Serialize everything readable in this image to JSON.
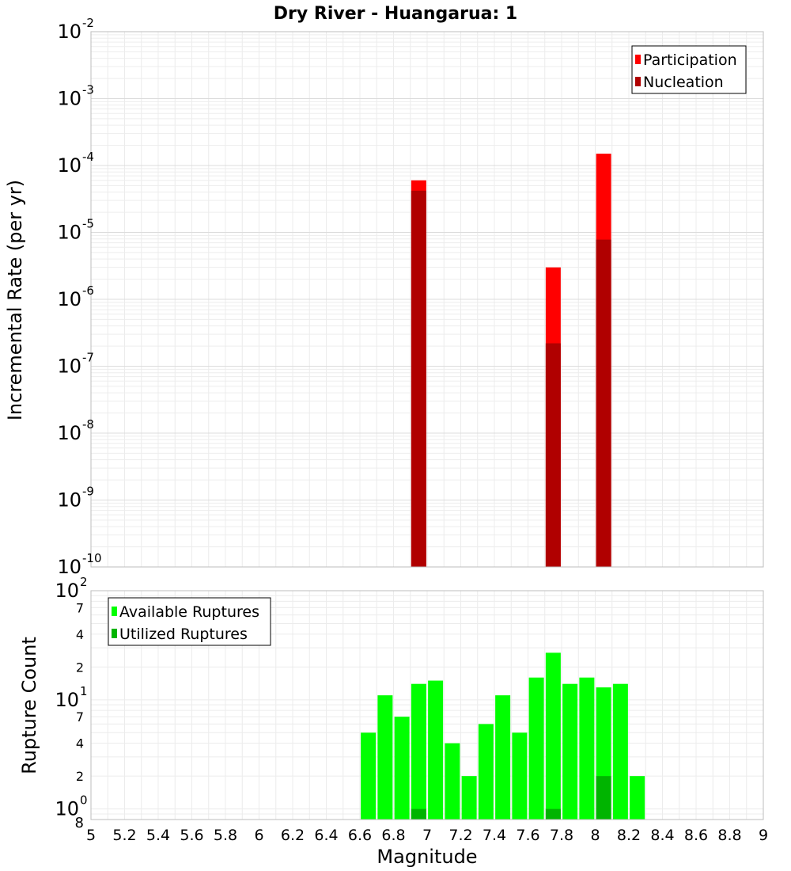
{
  "chart_data": [
    {
      "type": "bar",
      "title": "Dry River - Huangarua: 1",
      "xlabel": "",
      "ylabel": "Incremental Rate (per yr)",
      "yscale": "log",
      "xlim": [
        5,
        9
      ],
      "ylim": [
        1e-10,
        0.01
      ],
      "bin_width": 0.1,
      "y_tick_labels": [
        {
          "value": 1e-10,
          "base": "10",
          "exp": "-10"
        },
        {
          "value": 1e-09,
          "base": "10",
          "exp": "-9"
        },
        {
          "value": 1e-08,
          "base": "10",
          "exp": "-8"
        },
        {
          "value": 1e-07,
          "base": "10",
          "exp": "-7"
        },
        {
          "value": 1e-06,
          "base": "10",
          "exp": "-6"
        },
        {
          "value": 1e-05,
          "base": "10",
          "exp": "-5"
        },
        {
          "value": 0.0001,
          "base": "10",
          "exp": "-4"
        },
        {
          "value": 0.001,
          "base": "10",
          "exp": "-3"
        },
        {
          "value": 0.01,
          "base": "10",
          "exp": "-2"
        }
      ],
      "series": [
        {
          "name": "Participation",
          "color": "#ff0000",
          "x": [
            6.95,
            7.75,
            8.05
          ],
          "values": [
            6e-05,
            3e-06,
            0.00015
          ]
        },
        {
          "name": "Nucleation",
          "color": "#b00000",
          "x": [
            6.95,
            7.75,
            8.05
          ],
          "values": [
            4.2e-05,
            2.2e-07,
            7.8e-06
          ]
        }
      ],
      "legend": [
        "Participation",
        "Nucleation"
      ],
      "legend_position": "top-right",
      "grid": true
    },
    {
      "type": "bar",
      "title": "",
      "xlabel": "Magnitude",
      "ylabel": "Rupture Count",
      "yscale": "log",
      "xlim": [
        5,
        9
      ],
      "ylim": [
        0.8,
        100
      ],
      "bin_width": 0.1,
      "x_tick_labels": [
        "5",
        "5.2",
        "5.4",
        "5.6",
        "5.8",
        "6",
        "6.2",
        "6.4",
        "6.6",
        "6.8",
        "7",
        "7.2",
        "7.4",
        "7.6",
        "7.8",
        "8",
        "8.2",
        "8.4",
        "8.6",
        "8.8",
        "9"
      ],
      "y_tick_labels": [
        {
          "value": 1,
          "base": "10",
          "exp": "0"
        },
        {
          "value": 2,
          "label": "2"
        },
        {
          "value": 4,
          "label": "4"
        },
        {
          "value": 7,
          "label": "7"
        },
        {
          "value": 10,
          "base": "10",
          "exp": "1"
        },
        {
          "value": 20,
          "label": "2"
        },
        {
          "value": 40,
          "label": "4"
        },
        {
          "value": 70,
          "label": "7"
        },
        {
          "value": 100,
          "base": "10",
          "exp": "2"
        }
      ],
      "ymin_label": "8",
      "series": [
        {
          "name": "Available Ruptures",
          "color": "#00ff00",
          "x": [
            6.65,
            6.75,
            6.85,
            6.95,
            7.05,
            7.15,
            7.25,
            7.35,
            7.45,
            7.55,
            7.65,
            7.75,
            7.85,
            7.95,
            8.05,
            8.15,
            8.25
          ],
          "values": [
            5,
            11,
            7,
            14,
            15,
            4,
            2,
            6,
            11,
            5,
            16,
            27,
            14,
            16,
            13,
            14,
            2
          ]
        },
        {
          "name": "Utilized Ruptures",
          "color": "#00b400",
          "x": [
            6.95,
            7.75,
            8.05
          ],
          "values": [
            1,
            1,
            2
          ]
        }
      ],
      "legend": [
        "Available Ruptures",
        "Utilized Ruptures"
      ],
      "legend_position": "top-left",
      "grid": true
    }
  ]
}
